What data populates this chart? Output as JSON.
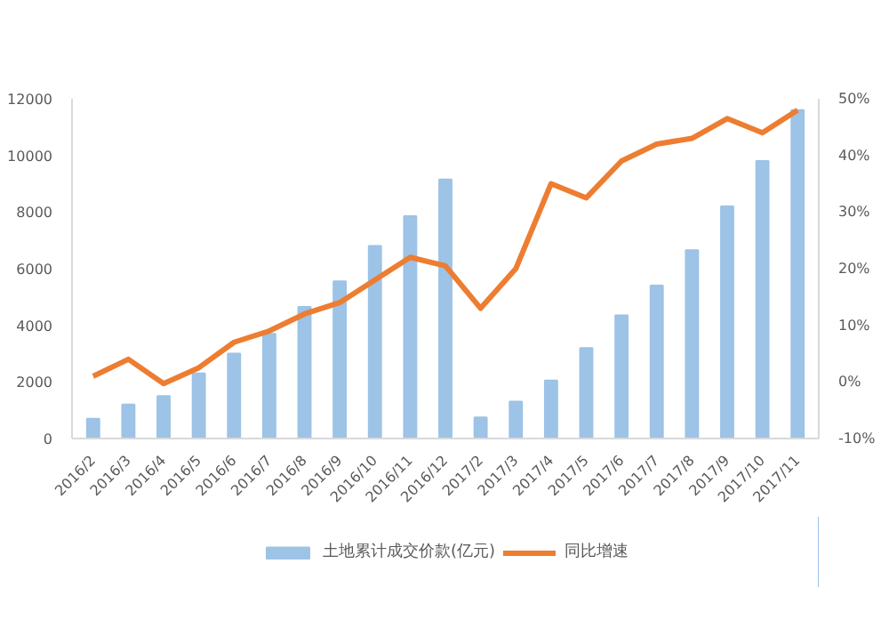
{
  "chart_data": {
    "type": "bar",
    "categories": [
      "2016/2",
      "2016/3",
      "2016/4",
      "2016/5",
      "2016/6",
      "2016/7",
      "2016/8",
      "2016/9",
      "2016/10",
      "2016/11",
      "2016/12",
      "2017/2",
      "2017/3",
      "2017/4",
      "2017/5",
      "2017/6",
      "2017/7",
      "2017/8",
      "2017/9",
      "2017/10",
      "2017/11"
    ],
    "series": [
      {
        "name": "土地累计成交价款(亿元)",
        "color": "#9dc3e6",
        "values": [
          700,
          1200,
          1500,
          2300,
          3000,
          3700,
          4650,
          5550,
          6800,
          7850,
          9150,
          750,
          1300,
          2050,
          3200,
          4350,
          5400,
          6650,
          8200,
          9800,
          11600
        ]
      },
      {
        "name": "同比增速",
        "type": "line",
        "axis": "y2",
        "color": "#ed7d31",
        "values": [
          1,
          4,
          -0.3,
          2.5,
          7,
          9,
          12,
          14,
          18,
          22,
          20.5,
          13,
          20,
          35,
          32.5,
          39,
          42,
          43,
          46.5,
          44,
          48
        ]
      }
    ],
    "ylim": [
      0,
      12000
    ],
    "yticks": [
      0,
      2000,
      4000,
      6000,
      8000,
      10000,
      12000
    ],
    "y2lim": [
      -10,
      50
    ],
    "y2ticks": [
      {
        "value": -10,
        "label": "-10%"
      },
      {
        "value": 0,
        "label": "0%"
      },
      {
        "value": 10,
        "label": "10%"
      },
      {
        "value": 20,
        "label": "20%"
      },
      {
        "value": 30,
        "label": "30%"
      },
      {
        "value": 40,
        "label": "40%"
      },
      {
        "value": 50,
        "label": "50%"
      }
    ],
    "legend": "bottom",
    "marker": "none",
    "line_style": "solid"
  }
}
